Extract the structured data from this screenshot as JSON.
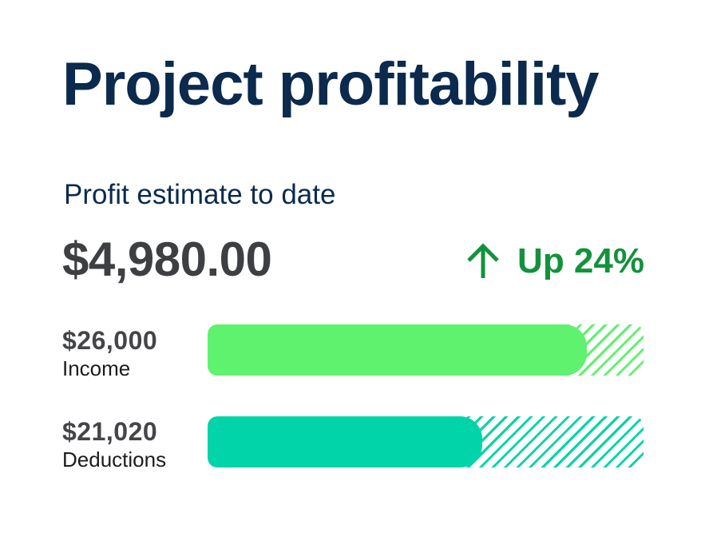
{
  "header": {
    "title": "Project profitability"
  },
  "profit": {
    "label": "Profit estimate to date",
    "amount": "$4,980.00",
    "trend_label": "Up 24%",
    "trend_icon": "arrow-up-icon",
    "trend_color": "#13923c"
  },
  "rows": [
    {
      "value": "$26,000",
      "label": "Income",
      "fill_fraction": 0.87,
      "color": "#5ef26f"
    },
    {
      "value": "$21,020",
      "label": "Deductions",
      "fill_fraction": 0.63,
      "color": "#00d4a8"
    }
  ],
  "colors": {
    "title": "#0b2a4d",
    "amount": "#3d3f43"
  }
}
